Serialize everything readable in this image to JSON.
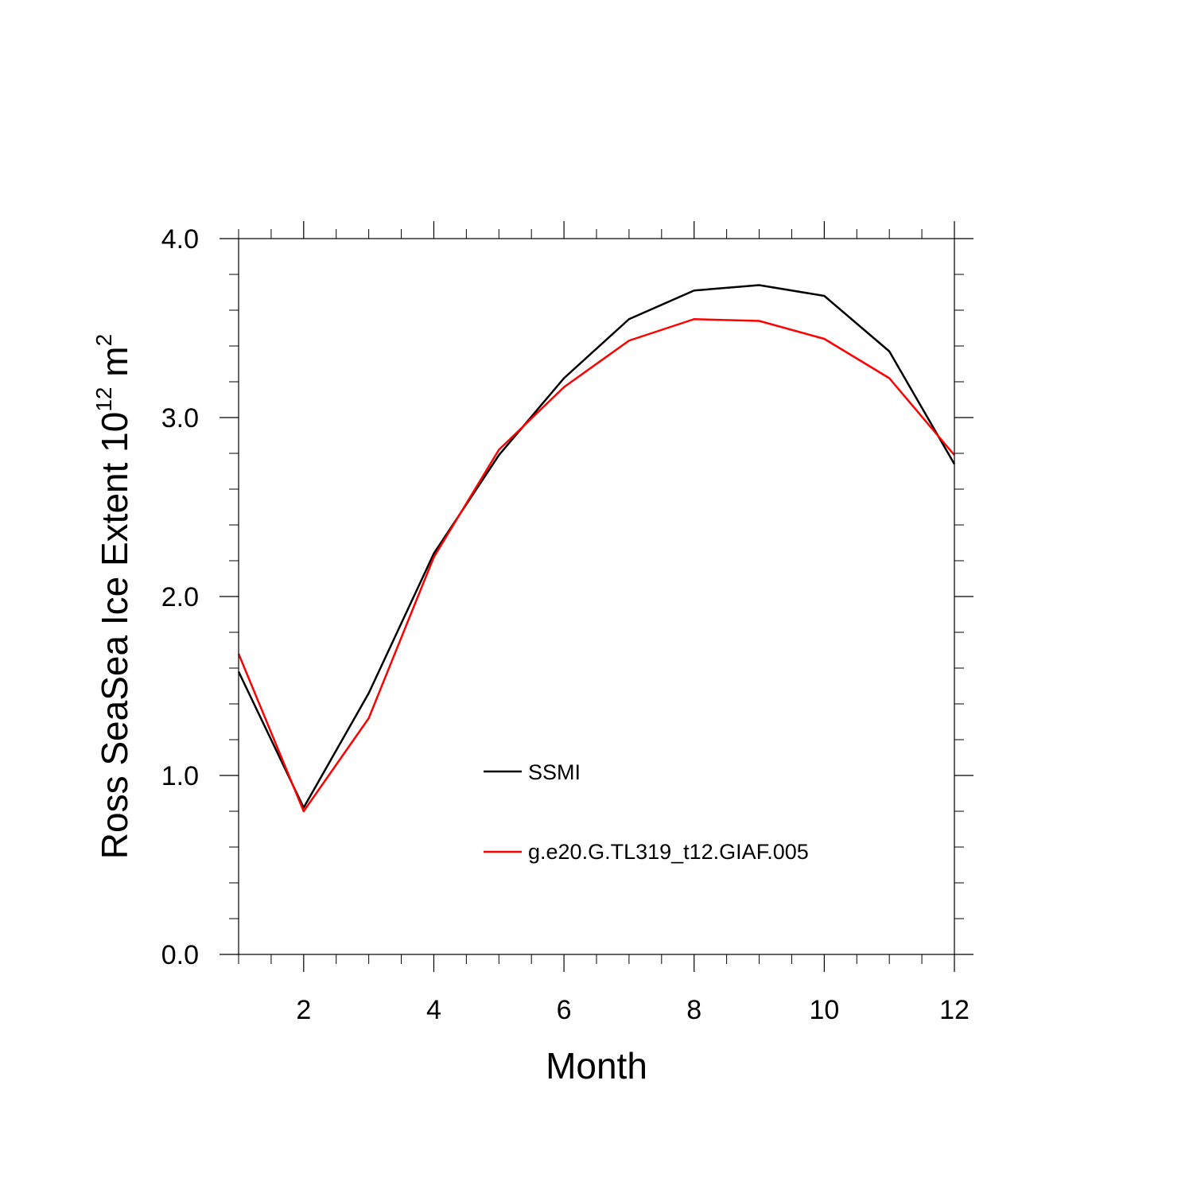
{
  "chart_data": {
    "type": "line",
    "title": "",
    "xlabel": "Month",
    "ylabel": {
      "prefix": "Ross SeaSea Ice Extent 10",
      "exp1": "12",
      "mid": " m",
      "exp2": "2"
    },
    "xlim": [
      1,
      12
    ],
    "ylim": [
      0,
      4
    ],
    "x": [
      1,
      2,
      3,
      4,
      5,
      6,
      7,
      8,
      9,
      10,
      11,
      12
    ],
    "x_ticks": [
      2,
      4,
      6,
      8,
      10,
      12
    ],
    "x_tick_labels": [
      "2",
      "4",
      "6",
      "8",
      "10",
      "12"
    ],
    "y_ticks": [
      0,
      1,
      2,
      3,
      4
    ],
    "y_tick_labels": [
      "0.0",
      "1.0",
      "2.0",
      "3.0",
      "4.0"
    ],
    "grid": false,
    "legend_position": "center",
    "series": [
      {
        "name": "SSMI",
        "color": "#000000",
        "values": [
          1.58,
          0.82,
          1.46,
          2.24,
          2.79,
          3.22,
          3.55,
          3.71,
          3.74,
          3.68,
          3.37,
          2.74
        ]
      },
      {
        "name": "g.e20.G.TL319_t12.GIAF.005",
        "color": "#ff0000",
        "values": [
          1.68,
          0.8,
          1.32,
          2.22,
          2.82,
          3.17,
          3.43,
          3.55,
          3.54,
          3.44,
          3.22,
          2.79
        ]
      }
    ]
  }
}
